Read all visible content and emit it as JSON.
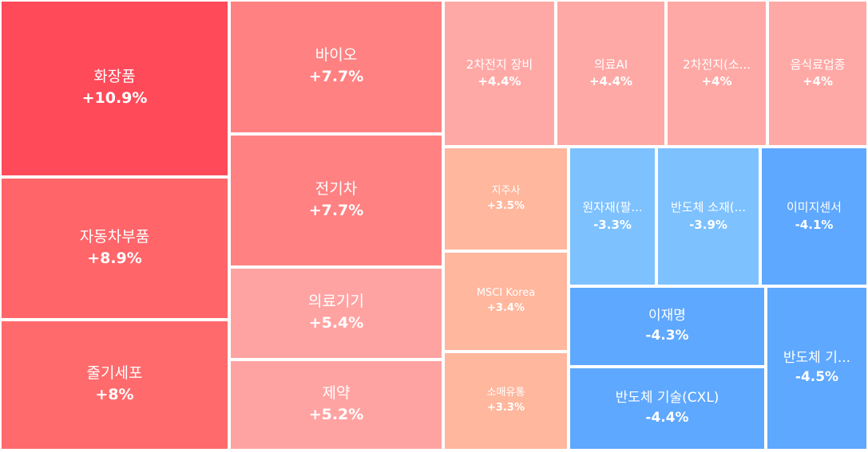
{
  "chart_data": {
    "type": "treemap",
    "title": "",
    "items": [
      {
        "name": "화장품",
        "change_label": "+10.9%",
        "value": 10.9,
        "color": "#ff4a5a"
      },
      {
        "name": "자동차부품",
        "change_label": "+8.9%",
        "value": 8.9,
        "color": "#ff6569"
      },
      {
        "name": "줄기세포",
        "change_label": "+8%",
        "value": 8.0,
        "color": "#ff6b6c"
      },
      {
        "name": "바이오",
        "change_label": "+7.7%",
        "value": 7.7,
        "color": "#ff8182"
      },
      {
        "name": "전기차",
        "change_label": "+7.7%",
        "value": 7.7,
        "color": "#ff8182"
      },
      {
        "name": "의료기기",
        "change_label": "+5.4%",
        "value": 5.4,
        "color": "#ffa3a2"
      },
      {
        "name": "제약",
        "change_label": "+5.2%",
        "value": 5.2,
        "color": "#ffa3a2"
      },
      {
        "name": "2차전지 장비",
        "change_label": "+4.4%",
        "value": 4.4,
        "color": "#ffa9a6"
      },
      {
        "name": "의료AI",
        "change_label": "+4.4%",
        "value": 4.4,
        "color": "#ffa9a6"
      },
      {
        "name": "2차전지(소...",
        "change_label": "+4%",
        "value": 4.0,
        "color": "#ffa9a6"
      },
      {
        "name": "음식료업종",
        "change_label": "+4%",
        "value": 4.0,
        "color": "#ffa9a6"
      },
      {
        "name": "지주사",
        "change_label": "+3.5%",
        "value": 3.5,
        "color": "#ffb79d"
      },
      {
        "name": "MSCI Korea",
        "change_label": "+3.4%",
        "value": 3.4,
        "color": "#ffb79d"
      },
      {
        "name": "소매유통",
        "change_label": "+3.3%",
        "value": 3.3,
        "color": "#ffb79d"
      },
      {
        "name": "원자재(팔...",
        "change_label": "-3.3%",
        "value": -3.3,
        "color": "#7dc1ff"
      },
      {
        "name": "반도체 소재(...",
        "change_label": "-3.9%",
        "value": -3.9,
        "color": "#7dc1ff"
      },
      {
        "name": "이미지센서",
        "change_label": "-4.1%",
        "value": -4.1,
        "color": "#5ea8ff"
      },
      {
        "name": "이재명",
        "change_label": "-4.3%",
        "value": -4.3,
        "color": "#5ea8ff"
      },
      {
        "name": "반도체 기술(CXL)",
        "change_label": "-4.4%",
        "value": -4.4,
        "color": "#5ea8ff"
      },
      {
        "name": "반도체 기...",
        "change_label": "-4.5%",
        "value": -4.5,
        "color": "#5ea8ff"
      }
    ]
  }
}
